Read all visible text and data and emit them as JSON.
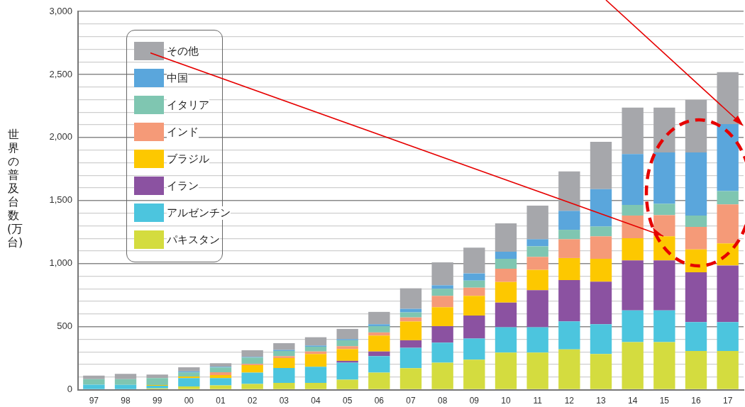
{
  "chart_data": {
    "type": "bar",
    "stacked": true,
    "ylabel": "世界の普及台数(万台)",
    "legend": "top left",
    "grid": true,
    "categories": [
      "97",
      "98",
      "99",
      "00",
      "01",
      "02",
      "03",
      "04",
      "05",
      "06",
      "07",
      "08",
      "09",
      "10",
      "11",
      "12",
      "13",
      "14",
      "15",
      "16",
      "17"
    ],
    "ylim": [
      0,
      3000
    ],
    "yticks": [
      0,
      {
        "value": 100,
        "label": null
      },
      {
        "value": 200,
        "label": null
      },
      {
        "value": 300,
        "label": null
      },
      {
        "value": 400,
        "label": null
      },
      {
        "value": 500,
        "label": "500"
      },
      {
        "value": 600,
        "label": null
      },
      {
        "value": 700,
        "label": null
      },
      {
        "value": 800,
        "label": null
      },
      {
        "value": 900,
        "label": null
      },
      {
        "value": 1000,
        "label": "1,000"
      },
      {
        "value": 1100,
        "label": null
      },
      {
        "value": 1200,
        "label": null
      },
      {
        "value": 1300,
        "label": null
      },
      {
        "value": 1400,
        "label": null
      },
      {
        "value": 1500,
        "label": "1,500"
      },
      {
        "value": 1600,
        "label": null
      },
      {
        "value": 1700,
        "label": null
      },
      {
        "value": 1800,
        "label": null
      },
      {
        "value": 1900,
        "label": null
      },
      {
        "value": 2000,
        "label": "2,000"
      },
      {
        "value": 2100,
        "label": null
      },
      {
        "value": 2200,
        "label": null
      },
      {
        "value": 2300,
        "label": null
      },
      {
        "value": 2400,
        "label": null
      },
      {
        "value": 2500,
        "label": "2,500"
      },
      {
        "value": 2600,
        "label": null
      },
      {
        "value": 2700,
        "label": null
      },
      {
        "value": 2800,
        "label": null
      },
      {
        "value": 2900,
        "label": null
      },
      {
        "value": 3000,
        "label": "3,000"
      }
    ],
    "series": [
      {
        "name": "パキスタン",
        "color": "#d4dc3f",
        "values": [
          0,
          0,
          10,
          26,
          35,
          45,
          54,
          54,
          79,
          135,
          170,
          214,
          238,
          294,
          294,
          320,
          283,
          377,
          377,
          307,
          307
        ]
      },
      {
        "name": "アルゼンチン",
        "color": "#4cc5de",
        "values": [
          40,
          39,
          22,
          66,
          57,
          90,
          118,
          128,
          135,
          131,
          162,
          159,
          168,
          201,
          201,
          221,
          236,
          252,
          252,
          229,
          229
        ]
      },
      {
        "name": "イラン",
        "color": "#8b52a1",
        "values": [
          0,
          0,
          0,
          0,
          0,
          0,
          0,
          0,
          15,
          37,
          60,
          131,
          182,
          196,
          294,
          328,
          337,
          396,
          396,
          395,
          449
        ]
      },
      {
        "name": "ブラジル",
        "color": "#fdc800",
        "values": [
          0,
          0,
          5,
          13,
          24,
          60,
          79,
          101,
          93,
          126,
          149,
          150,
          156,
          163,
          161,
          175,
          182,
          176,
          191,
          182,
          175
        ]
      },
      {
        "name": "インド",
        "color": "#f59a78",
        "values": [
          0,
          0,
          0,
          null,
          23,
          9,
          15,
          20,
          23,
          25,
          32,
          90,
          65,
          105,
          103,
          149,
          178,
          180,
          168,
          178,
          309
        ]
      },
      {
        "name": "イタリア",
        "color": "#7fc6b1",
        "values": [
          43,
          44,
          55,
          32,
          37,
          51,
          41,
          38,
          47,
          50,
          40,
          56,
          56,
          79,
          84,
          75,
          78,
          84,
          90,
          90,
          106
        ]
      },
      {
        "name": "中国",
        "color": "#5aa6dc",
        "values": [
          0,
          0,
          0,
          9,
          6,
          5,
          8,
          9,
          9,
          15,
          28,
          28,
          57,
          56,
          56,
          150,
          296,
          403,
          407,
          500,
          531
        ]
      },
      {
        "name": "その他",
        "color": "#a6a7ab",
        "values": [
          28,
          42,
          28,
          32,
          28,
          53,
          54,
          66,
          81,
          98,
          163,
          182,
          204,
          225,
          266,
          313,
          375,
          369,
          356,
          418,
          412
        ]
      }
    ]
  }
}
